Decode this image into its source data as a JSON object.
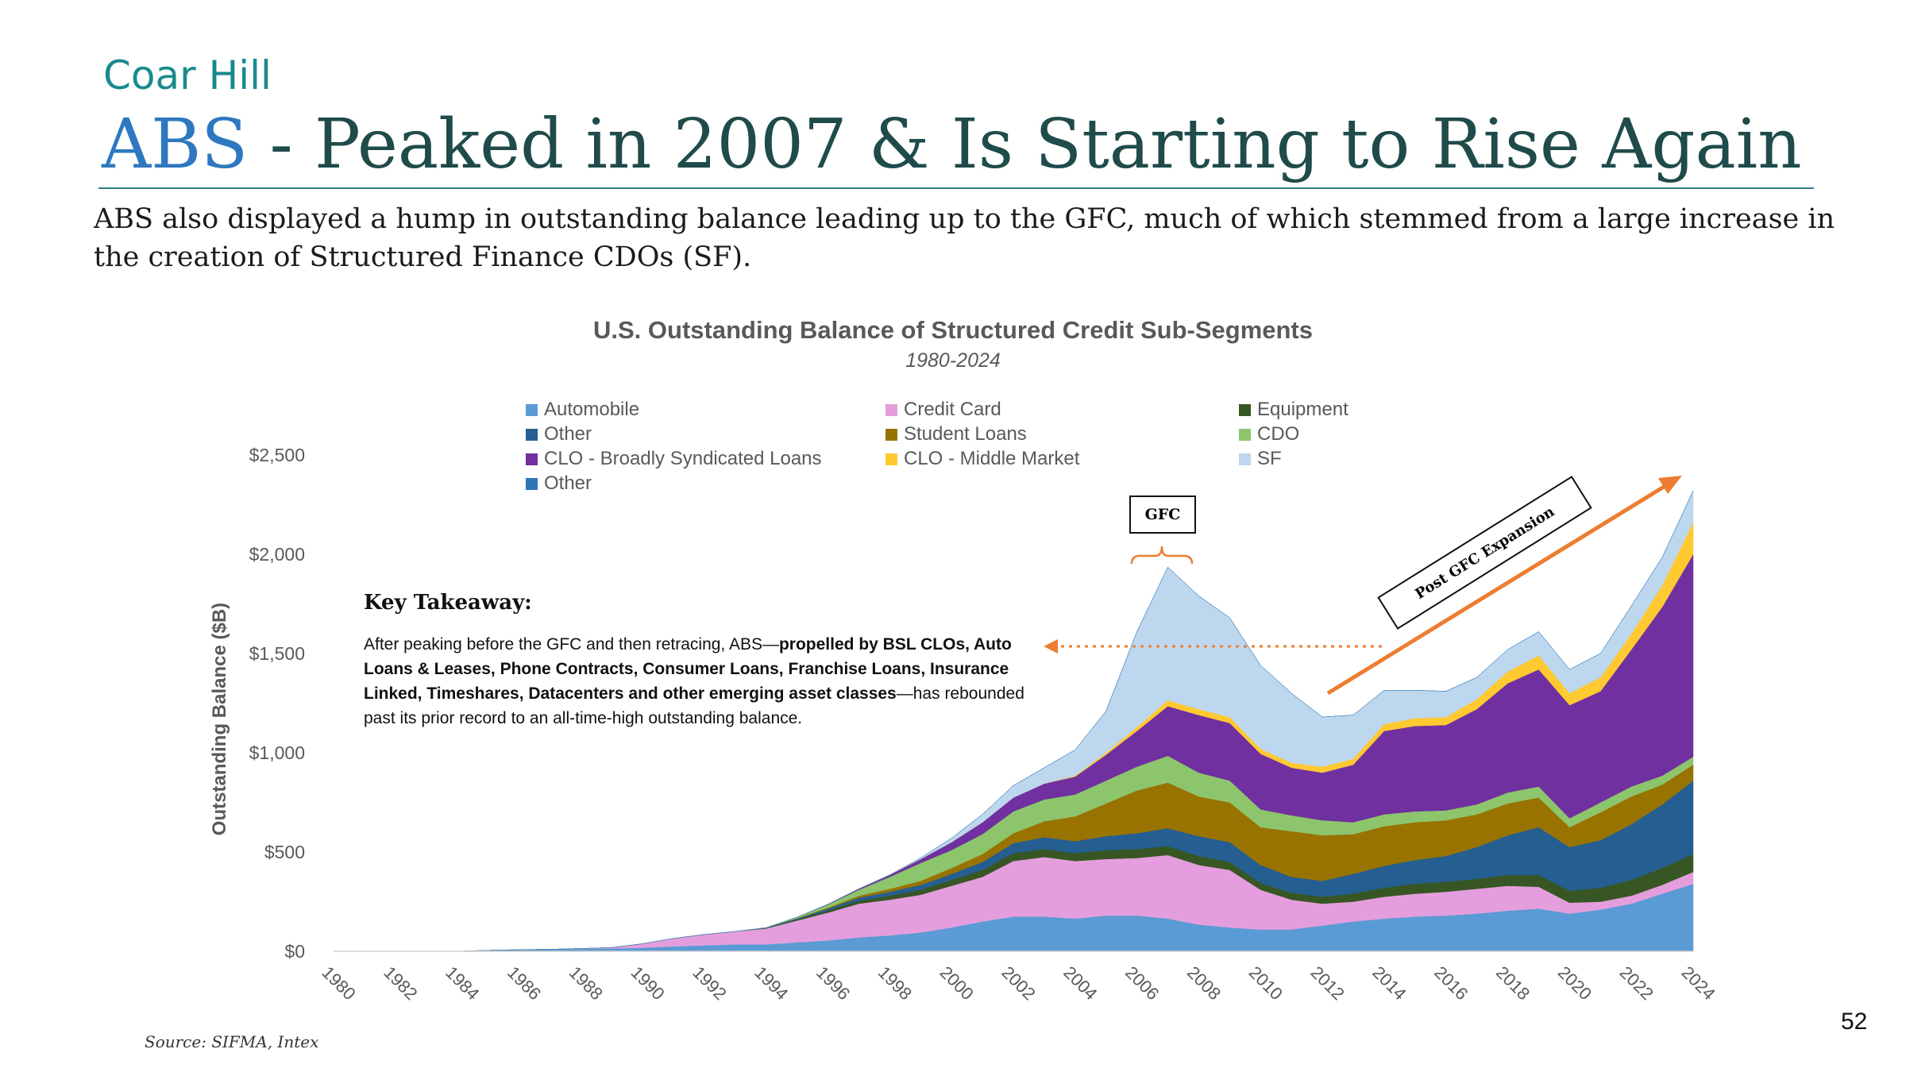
{
  "header": {
    "brand": "Coar Hill",
    "title_accent": "ABS",
    "title_rest": " - Peaked in 2007 & Is Starting to Rise Again",
    "intro": "ABS also displayed a hump in outstanding balance leading up to the GFC, much of which stemmed from a large increase in the creation of Structured Finance CDOs (SF)."
  },
  "takeaway": {
    "heading": "Key Takeaway:",
    "text_before": "After peaking before the GFC and then retracing, ABS—",
    "text_bold": "propelled by BSL CLOs, Auto Loans & Leases, Phone Contracts, Consumer Loans, Franchise Loans, Insurance Linked, Timeshares, Datacenters and other emerging asset classes",
    "text_after": "—has rebounded past its prior record to an all-time-high outstanding balance."
  },
  "annotations": {
    "gfc": "GFC",
    "post_gfc": "Post GFC Expansion"
  },
  "footer": {
    "source": "Source: SIFMA, Intex",
    "page_number": "52"
  },
  "chart_data": {
    "type": "area",
    "stacked": true,
    "title": "U.S. Outstanding Balance of Structured Credit Sub-Segments",
    "subtitle": "1980-2024",
    "ylabel": "Outstanding Balance ($B)",
    "xlabel": "",
    "ylim": [
      0,
      2500
    ],
    "yticks": [
      0,
      500,
      1000,
      1500,
      2000,
      2500
    ],
    "ytick_labels": [
      "$0",
      "$500",
      "$1,000",
      "$1,500",
      "$2,000",
      "$2,500"
    ],
    "xtick_labels": [
      "1980",
      "1982",
      "1984",
      "1986",
      "1988",
      "1990",
      "1992",
      "1994",
      "1996",
      "1998",
      "2000",
      "2002",
      "2004",
      "2006",
      "2008",
      "2010",
      "2012",
      "2014",
      "2016",
      "2018",
      "2020",
      "2022",
      "2024"
    ],
    "grid": false,
    "legend_position": "top",
    "x": [
      1980,
      1981,
      1982,
      1983,
      1984,
      1985,
      1986,
      1987,
      1988,
      1989,
      1990,
      1991,
      1992,
      1993,
      1994,
      1995,
      1996,
      1997,
      1998,
      1999,
      2000,
      2001,
      2002,
      2003,
      2004,
      2005,
      2006,
      2007,
      2008,
      2009,
      2010,
      2011,
      2012,
      2013,
      2014,
      2015,
      2016,
      2017,
      2018,
      2019,
      2020,
      2021,
      2022,
      2023,
      2024
    ],
    "series": [
      {
        "name": "Automobile",
        "color": "#5b9bd5",
        "values": [
          0,
          0,
          0,
          0,
          0,
          5,
          8,
          10,
          12,
          14,
          18,
          25,
          30,
          35,
          35,
          45,
          55,
          70,
          80,
          95,
          120,
          150,
          175,
          175,
          165,
          180,
          180,
          165,
          135,
          120,
          110,
          110,
          130,
          150,
          165,
          175,
          180,
          190,
          205,
          215,
          190,
          210,
          240,
          290,
          340
        ]
      },
      {
        "name": "Credit Card",
        "color": "#e59edd",
        "values": [
          0,
          0,
          0,
          0,
          0,
          0,
          0,
          0,
          2,
          5,
          20,
          40,
          55,
          65,
          80,
          110,
          140,
          170,
          180,
          190,
          210,
          225,
          280,
          300,
          290,
          285,
          290,
          320,
          300,
          290,
          200,
          150,
          110,
          100,
          110,
          115,
          120,
          125,
          125,
          110,
          55,
          40,
          40,
          45,
          60
        ]
      },
      {
        "name": "Equipment",
        "color": "#375623",
        "values": [
          0,
          0,
          0,
          0,
          0,
          0,
          0,
          0,
          0,
          0,
          0,
          0,
          0,
          0,
          2,
          5,
          10,
          15,
          20,
          25,
          30,
          35,
          40,
          40,
          40,
          45,
          45,
          45,
          45,
          40,
          35,
          35,
          35,
          40,
          45,
          50,
          50,
          50,
          55,
          60,
          60,
          70,
          80,
          85,
          90
        ]
      },
      {
        "name": "Other",
        "color": "#255e91",
        "values": [
          0,
          0,
          0,
          0,
          0,
          0,
          0,
          0,
          0,
          0,
          0,
          0,
          0,
          0,
          2,
          5,
          10,
          15,
          20,
          25,
          30,
          40,
          50,
          60,
          60,
          70,
          80,
          90,
          100,
          100,
          90,
          80,
          80,
          100,
          110,
          120,
          130,
          160,
          200,
          240,
          220,
          240,
          280,
          320,
          370
        ]
      },
      {
        "name": "Student Loans",
        "color": "#997300",
        "values": [
          0,
          0,
          0,
          0,
          0,
          0,
          0,
          0,
          0,
          0,
          0,
          0,
          0,
          0,
          0,
          2,
          5,
          10,
          15,
          20,
          30,
          40,
          50,
          80,
          125,
          165,
          215,
          230,
          200,
          200,
          190,
          230,
          230,
          200,
          200,
          190,
          180,
          165,
          160,
          150,
          100,
          140,
          140,
          100,
          80
        ]
      },
      {
        "name": "CDO",
        "color": "#8dc56c",
        "values": [
          0,
          0,
          0,
          0,
          0,
          0,
          0,
          0,
          0,
          0,
          0,
          0,
          0,
          0,
          0,
          5,
          15,
          30,
          60,
          90,
          90,
          100,
          110,
          110,
          110,
          115,
          120,
          135,
          120,
          110,
          90,
          80,
          75,
          60,
          60,
          55,
          50,
          50,
          55,
          55,
          45,
          50,
          50,
          45,
          40
        ]
      },
      {
        "name": "CLO - Broadly Syndicated Loans",
        "color": "#7030a0",
        "values": [
          0,
          0,
          0,
          0,
          0,
          0,
          0,
          0,
          0,
          0,
          0,
          0,
          0,
          0,
          0,
          0,
          2,
          5,
          10,
          20,
          40,
          60,
          70,
          80,
          90,
          130,
          180,
          250,
          290,
          290,
          280,
          240,
          240,
          290,
          420,
          430,
          430,
          480,
          550,
          590,
          570,
          560,
          690,
          850,
          1020
        ]
      },
      {
        "name": "CLO - Middle Market",
        "color": "#ffc931",
        "values": [
          0,
          0,
          0,
          0,
          0,
          0,
          0,
          0,
          0,
          0,
          0,
          0,
          0,
          0,
          0,
          0,
          0,
          0,
          0,
          0,
          0,
          0,
          0,
          0,
          5,
          10,
          20,
          30,
          30,
          30,
          25,
          25,
          30,
          30,
          35,
          40,
          40,
          50,
          60,
          70,
          60,
          70,
          80,
          110,
          160
        ]
      },
      {
        "name": "SF",
        "color": "#bdd7ee",
        "values": [
          0,
          0,
          0,
          0,
          0,
          0,
          0,
          0,
          0,
          0,
          0,
          0,
          0,
          0,
          0,
          0,
          0,
          0,
          0,
          5,
          20,
          40,
          60,
          80,
          130,
          210,
          480,
          670,
          570,
          500,
          420,
          350,
          250,
          220,
          170,
          140,
          130,
          110,
          110,
          120,
          120,
          120,
          140,
          140,
          160
        ]
      },
      {
        "name": "Other",
        "color": "#2e75b6",
        "values": [
          0,
          0,
          0,
          0,
          0,
          0,
          0,
          0,
          0,
          0,
          0,
          0,
          0,
          0,
          0,
          0,
          0,
          0,
          0,
          0,
          0,
          0,
          0,
          0,
          0,
          0,
          0,
          0,
          0,
          0,
          0,
          0,
          0,
          0,
          0,
          0,
          0,
          0,
          0,
          0,
          0,
          0,
          0,
          0,
          0
        ]
      }
    ]
  }
}
